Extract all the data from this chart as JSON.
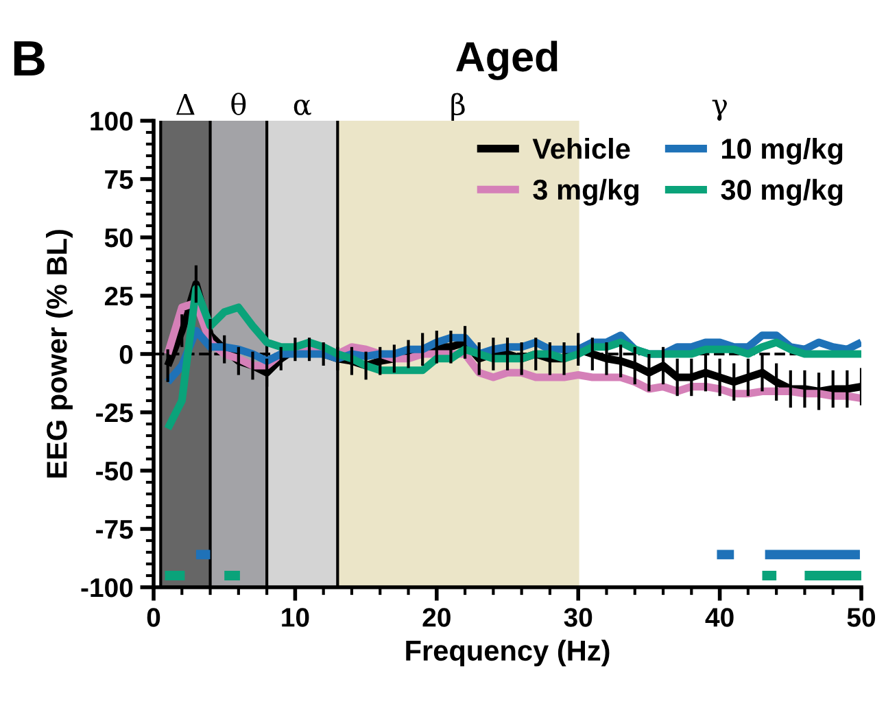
{
  "chart_data": {
    "type": "line",
    "title": "Aged",
    "xlabel": "Frequency (Hz)",
    "ylabel": "EEG power (% BL)",
    "annotations": [
      "B",
      "γ"
    ],
    "x": [
      1,
      2,
      3,
      4,
      5,
      6,
      7,
      8,
      9,
      10,
      11,
      12,
      13,
      14,
      15,
      16,
      17,
      18,
      19,
      20,
      21,
      22,
      23,
      24,
      25,
      26,
      27,
      28,
      29,
      30,
      31,
      32,
      33,
      34,
      35,
      36,
      37,
      38,
      39,
      40,
      41,
      42,
      43,
      44,
      45,
      46,
      47,
      48,
      49,
      50
    ],
    "series": [
      {
        "name": "Vehicle",
        "color": "#000000",
        "values": [
          -5,
          10,
          30,
          8,
          2,
          -3,
          -5,
          -8,
          -2,
          2,
          2,
          0,
          -2,
          -3,
          -5,
          -3,
          -2,
          0,
          2,
          3,
          3,
          5,
          -2,
          0,
          0,
          -2,
          0,
          -2,
          -2,
          2,
          0,
          -2,
          -3,
          -5,
          -8,
          -5,
          -10,
          -10,
          -8,
          -10,
          -12,
          -10,
          -8,
          -12,
          -15,
          -15,
          -16,
          -15,
          -15,
          -14
        ],
        "errors": [
          7,
          7,
          8,
          7,
          6,
          6,
          6,
          6,
          5,
          5,
          5,
          5,
          5,
          6,
          6,
          6,
          6,
          6,
          7,
          7,
          7,
          7,
          7,
          7,
          7,
          7,
          7,
          7,
          7,
          7,
          7,
          7,
          7,
          8,
          8,
          8,
          8,
          8,
          8,
          8,
          8,
          8,
          8,
          8,
          8,
          8,
          8,
          8,
          8,
          8
        ]
      },
      {
        "name": "3 mg/kg",
        "color": "#d580b8",
        "values": [
          0,
          20,
          22,
          5,
          0,
          -2,
          -5,
          -5,
          0,
          3,
          2,
          0,
          0,
          3,
          2,
          0,
          -2,
          -2,
          0,
          0,
          0,
          0,
          -8,
          -10,
          -8,
          -8,
          -10,
          -10,
          -10,
          -9,
          -10,
          -10,
          -10,
          -12,
          -15,
          -14,
          -16,
          -14,
          -14,
          -15,
          -17,
          -17,
          -16,
          -16,
          -16,
          -17,
          -17,
          -18,
          -18,
          -19
        ]
      },
      {
        "name": "10 mg/kg",
        "color": "#1f72b8",
        "values": [
          -12,
          -5,
          10,
          3,
          3,
          2,
          0,
          -3,
          0,
          0,
          0,
          0,
          -2,
          0,
          -1,
          0,
          0,
          2,
          2,
          5,
          7,
          7,
          0,
          2,
          3,
          3,
          5,
          2,
          2,
          2,
          5,
          5,
          8,
          2,
          0,
          0,
          3,
          3,
          5,
          5,
          3,
          3,
          8,
          8,
          3,
          2,
          5,
          3,
          2,
          5
        ]
      },
      {
        "name": "30 mg/kg",
        "color": "#0aa37a",
        "values": [
          -32,
          -20,
          28,
          12,
          18,
          20,
          12,
          5,
          3,
          3,
          5,
          3,
          0,
          -2,
          -5,
          -7,
          -7,
          -7,
          -7,
          -2,
          -2,
          2,
          0,
          -2,
          -2,
          -2,
          0,
          0,
          -2,
          0,
          3,
          3,
          5,
          2,
          0,
          0,
          0,
          0,
          2,
          2,
          2,
          0,
          3,
          5,
          2,
          0,
          0,
          0,
          0,
          0
        ]
      },
      {
        "color": "#1f72b8",
        "x": [
          3,
          4,
          4.5,
          39.8,
          41,
          42,
          43.2,
          49.9
        ],
        "values": [
          -86,
          -86,
          null,
          -86,
          -86,
          null,
          -86,
          -86
        ]
      },
      {
        "color": "#0aa37a",
        "x": [
          0.8,
          2.2,
          3,
          5,
          6.1,
          7,
          43,
          44,
          45,
          46,
          50
        ],
        "values": [
          -95,
          -95,
          null,
          -95,
          -95,
          null,
          -95,
          -95,
          null,
          -95,
          -95
        ]
      }
    ],
    "bands": [
      {
        "axis": "x",
        "from": 0.5,
        "to": 4,
        "label": "Δ",
        "color": "#666666"
      },
      {
        "axis": "x",
        "from": 4,
        "to": 8,
        "label": "θ",
        "color": "#a3a3a7"
      },
      {
        "axis": "x",
        "from": 8,
        "to": 13,
        "label": "α",
        "color": "#d4d4d4"
      },
      {
        "axis": "x",
        "from": 13,
        "to": 30,
        "label": "β",
        "color": "#ebe5c8"
      }
    ],
    "ref_lines": [
      {
        "axis": "y",
        "value": 0,
        "line_style": "dashed",
        "color": "#000000"
      }
    ],
    "xlim": [
      0,
      50
    ],
    "xticks": [
      0,
      10,
      20,
      30,
      40,
      50
    ],
    "ylim": [
      -100,
      100
    ],
    "yticks": [
      -100,
      -75,
      -50,
      -25,
      0,
      25,
      50,
      75,
      100
    ],
    "grid": false,
    "legend": "top right",
    "marker": "none",
    "line_style": "solid"
  }
}
